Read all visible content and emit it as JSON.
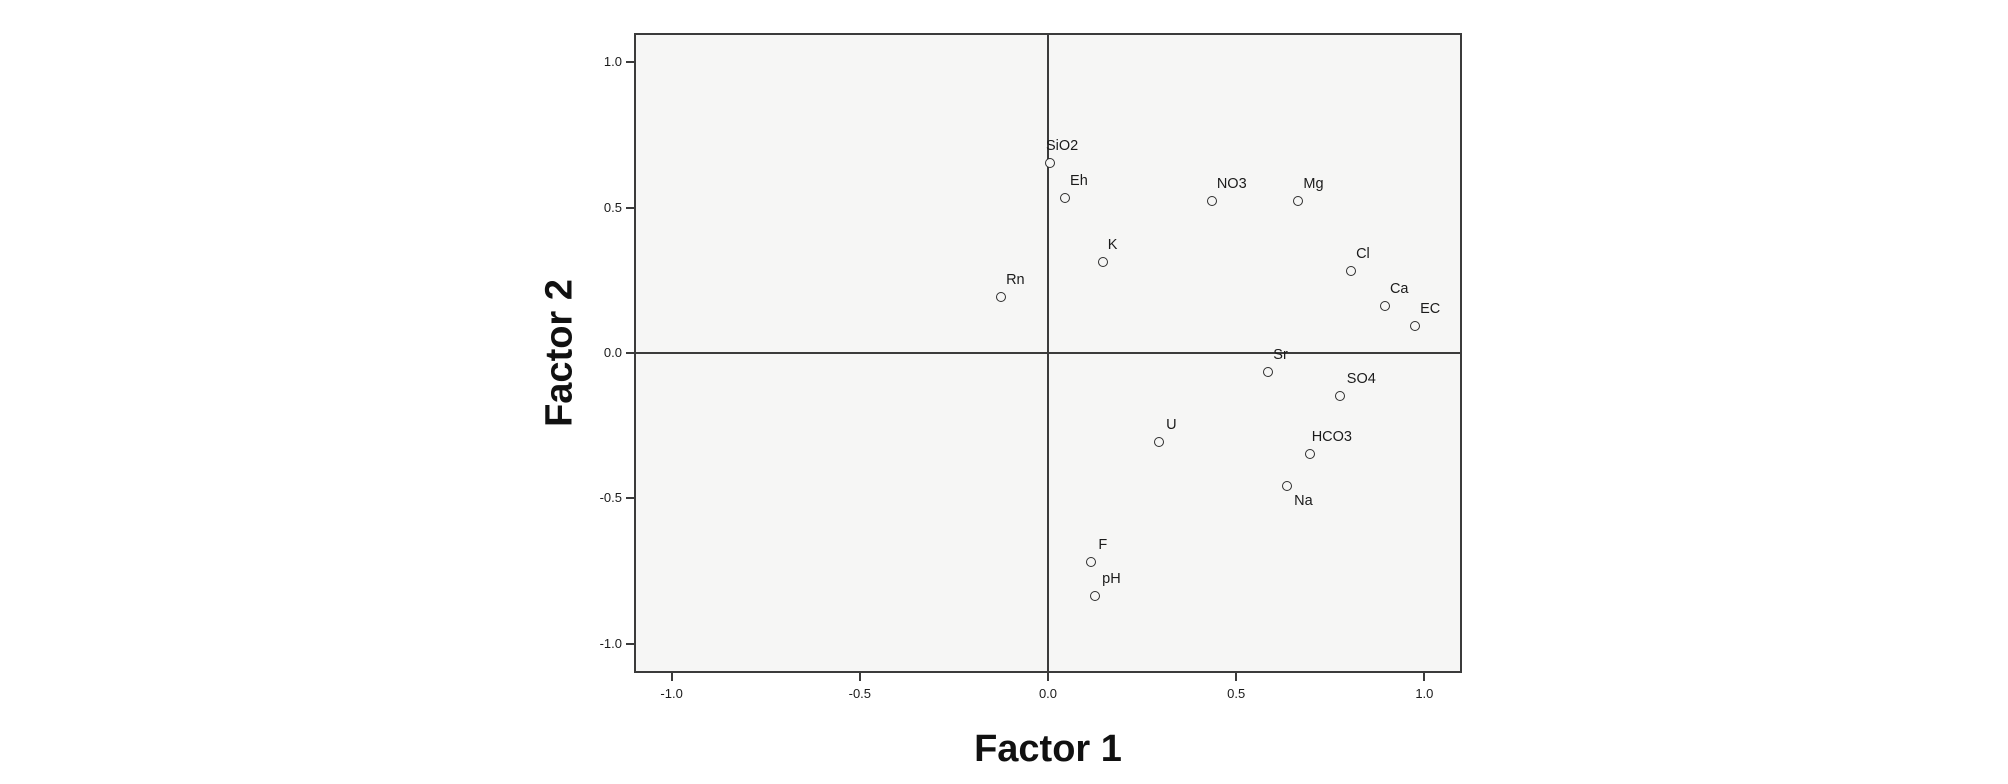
{
  "chart_data": {
    "type": "scatter",
    "title": "",
    "xlabel": "Factor 1",
    "ylabel": "Factor 2",
    "xlim": [
      -1.1,
      1.1
    ],
    "ylim": [
      -1.1,
      1.1
    ],
    "grid": false,
    "legend": "none",
    "marker": "open-circle",
    "x_ticks": [
      {
        "value": -1.0,
        "label": "-1.0"
      },
      {
        "value": -0.5,
        "label": "-0.5"
      },
      {
        "value": 0.0,
        "label": "0.0"
      },
      {
        "value": 0.5,
        "label": "0.5"
      },
      {
        "value": 1.0,
        "label": "1.0"
      }
    ],
    "y_ticks": [
      {
        "value": 1.0,
        "label": "1.0"
      },
      {
        "value": 0.5,
        "label": "0.5"
      },
      {
        "value": 0.0,
        "label": "0.0"
      },
      {
        "value": -0.5,
        "label": "-0.5"
      },
      {
        "value": -1.0,
        "label": "-1.0"
      }
    ],
    "points": [
      {
        "label": "SiO2",
        "x": 0.0,
        "y": 0.66,
        "label_pos": "above",
        "label_dx": -9
      },
      {
        "label": "Eh",
        "x": 0.04,
        "y": 0.54,
        "label_pos": "above",
        "label_dx": 0
      },
      {
        "label": "K",
        "x": 0.14,
        "y": 0.32,
        "label_pos": "above",
        "label_dx": 0
      },
      {
        "label": "Rn",
        "x": -0.13,
        "y": 0.2,
        "label_pos": "above",
        "label_dx": 0
      },
      {
        "label": "NO3",
        "x": 0.43,
        "y": 0.53,
        "label_pos": "above",
        "label_dx": 0
      },
      {
        "label": "Mg",
        "x": 0.66,
        "y": 0.53,
        "label_pos": "above",
        "label_dx": 0
      },
      {
        "label": "Cl",
        "x": 0.8,
        "y": 0.29,
        "label_pos": "above",
        "label_dx": 0
      },
      {
        "label": "Ca",
        "x": 0.89,
        "y": 0.17,
        "label_pos": "above",
        "label_dx": 0
      },
      {
        "label": "EC",
        "x": 0.97,
        "y": 0.1,
        "label_pos": "above",
        "label_dx": 0
      },
      {
        "label": "Sr",
        "x": 0.58,
        "y": -0.06,
        "label_pos": "above",
        "label_dx": 0
      },
      {
        "label": "SO4",
        "x": 0.77,
        "y": -0.14,
        "label_pos": "above",
        "label_dx": 2
      },
      {
        "label": "U",
        "x": 0.29,
        "y": -0.3,
        "label_pos": "above",
        "label_dx": 2
      },
      {
        "label": "HCO3",
        "x": 0.69,
        "y": -0.34,
        "label_pos": "above",
        "label_dx": -3
      },
      {
        "label": "Na",
        "x": 0.63,
        "y": -0.45,
        "label_pos": "below",
        "label_dx": 2
      },
      {
        "label": "F",
        "x": 0.11,
        "y": -0.71,
        "label_pos": "above",
        "label_dx": 2
      },
      {
        "label": "pH",
        "x": 0.12,
        "y": -0.83,
        "label_pos": "above",
        "label_dx": 2
      }
    ],
    "colors": {
      "plot_background": "#f6f6f5",
      "page_background": "#ffffff",
      "axis_line": "#3b3b3b",
      "marker_stroke": "#2e2e2e",
      "text": "#1b1b1b"
    }
  }
}
